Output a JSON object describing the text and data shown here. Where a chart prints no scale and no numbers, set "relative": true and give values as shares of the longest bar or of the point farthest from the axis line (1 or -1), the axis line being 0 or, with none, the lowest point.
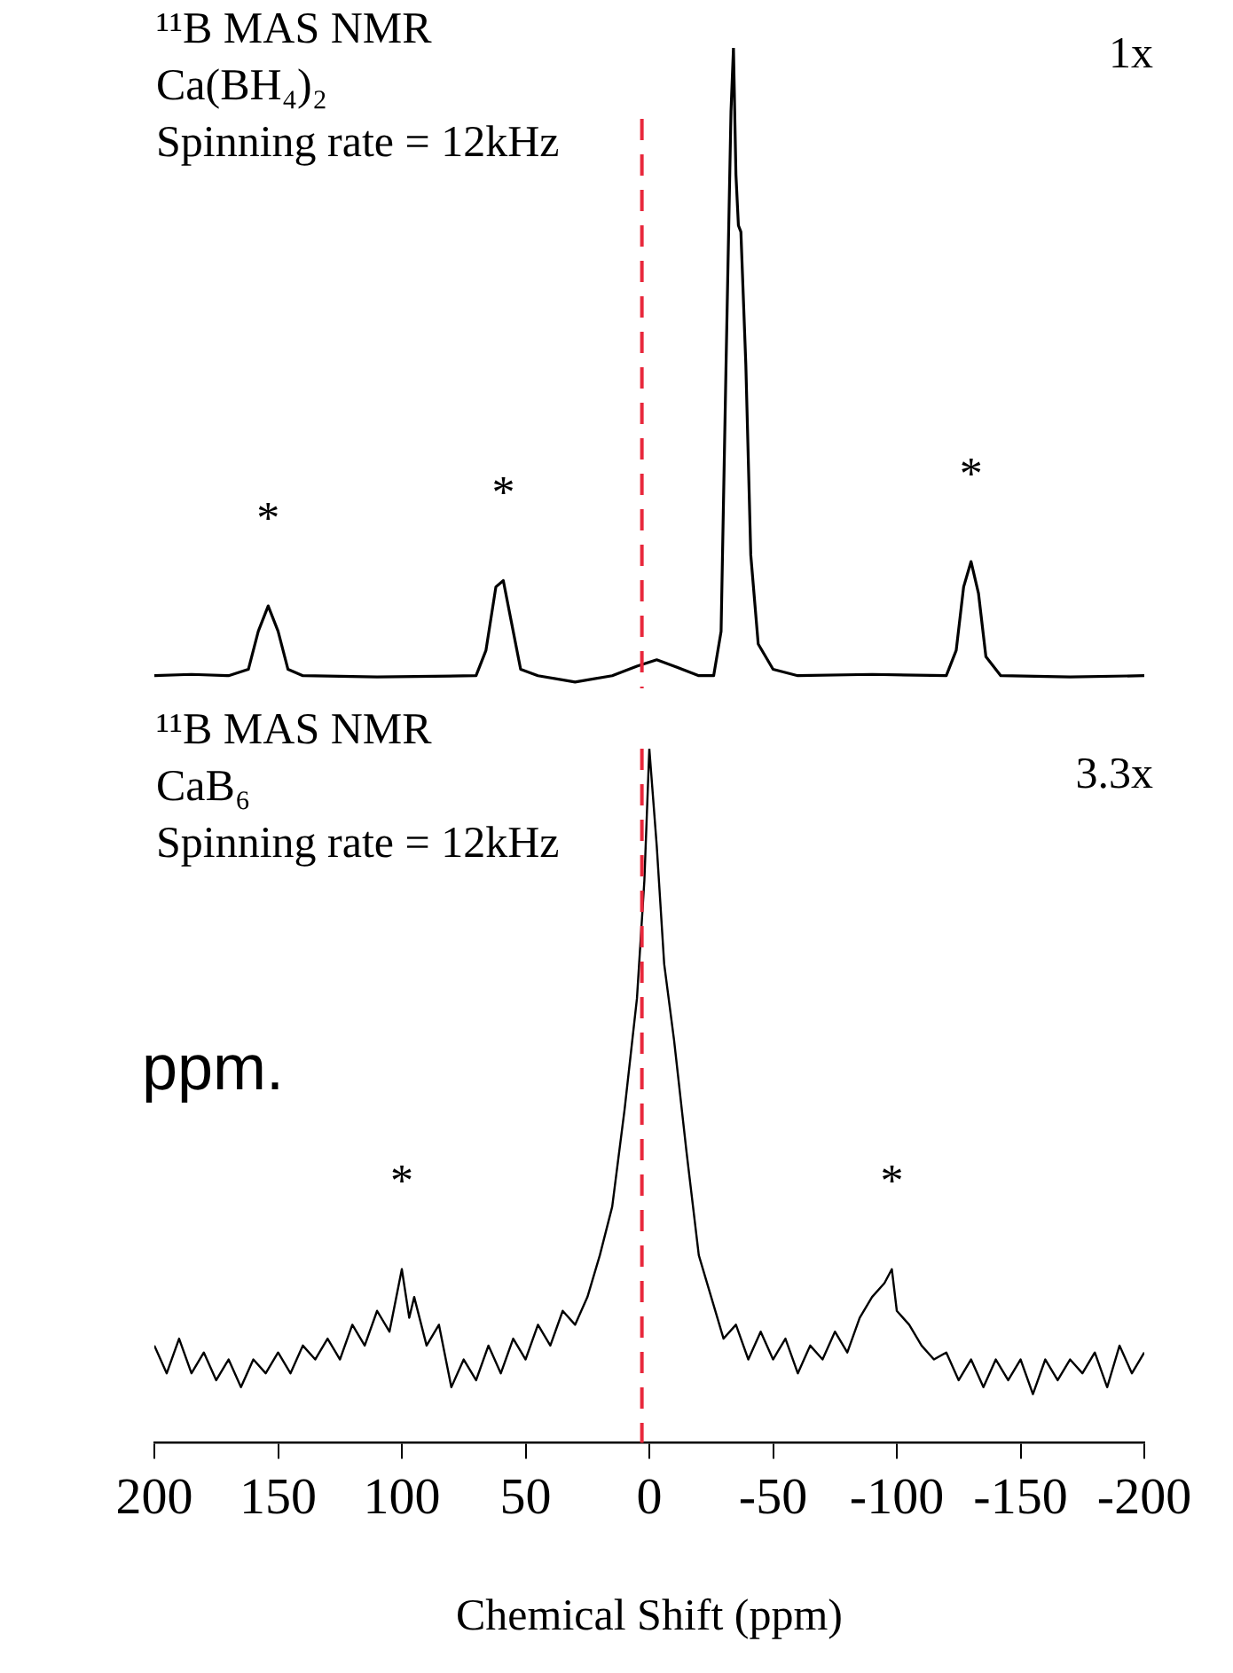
{
  "chart_data": [
    {
      "type": "line",
      "title": "¹¹B MAS NMR",
      "subtitle": "Ca(BH₄)₂",
      "relative": true,
      "xlim": [
        200,
        -200
      ],
      "tick_labels": false,
      "annotations": [
        "Spinning rate = 12kHz",
        "1x",
        {
          "text": "*",
          "x": 154,
          "y": 0.12
        },
        {
          "text": "*",
          "x": 59,
          "y": 0.16
        },
        {
          "text": "*",
          "x": -130,
          "y": 0.19
        }
      ],
      "ref_lines": [
        {
          "axis": "x",
          "value": 3,
          "color": "#e8283c",
          "line_style": "dashed"
        }
      ],
      "series": [
        {
          "color": "#000000",
          "x": [
            200,
            185,
            170,
            162,
            158,
            154,
            150,
            146,
            140,
            110,
            70,
            66,
            62,
            59,
            56,
            52,
            45,
            30,
            15,
            5,
            -3,
            -10,
            -20,
            -26,
            -29,
            -31,
            -33,
            -34,
            -35,
            -36,
            -37,
            -39,
            -41,
            -44,
            -50,
            -60,
            -90,
            -120,
            -124,
            -127,
            -130,
            -133,
            -136,
            -142,
            -170,
            -200
          ],
          "values": [
            0.01,
            0.012,
            0.01,
            0.02,
            0.08,
            0.12,
            0.08,
            0.02,
            0.01,
            0.008,
            0.01,
            0.05,
            0.15,
            0.16,
            0.1,
            0.02,
            0.01,
            0.0,
            0.01,
            0.025,
            0.035,
            0.025,
            0.01,
            0.01,
            0.08,
            0.5,
            0.9,
            1,
            0.8,
            0.72,
            0.71,
            0.5,
            0.2,
            0.06,
            0.02,
            0.01,
            0.012,
            0.01,
            0.05,
            0.15,
            0.19,
            0.14,
            0.04,
            0.01,
            0.008,
            0.01
          ]
        }
      ]
    },
    {
      "type": "line",
      "title": "¹¹B MAS NMR",
      "subtitle": "CaB₆",
      "relative": true,
      "xlim": [
        200,
        -200
      ],
      "xticks": [
        200,
        150,
        100,
        50,
        0,
        -50,
        -100,
        -150,
        -200
      ],
      "xlabel": "Chemical Shift (ppm)",
      "tick_labels": "x",
      "annotations": [
        "Spinning rate = 12kHz",
        "3.3x",
        "ppm.",
        {
          "text": "*",
          "x": 100,
          "y": 0.25
        },
        {
          "text": "*",
          "x": -98,
          "y": 0.25
        }
      ],
      "ref_lines": [
        {
          "axis": "x",
          "value": 3,
          "color": "#e8283c",
          "line_style": "dashed"
        }
      ],
      "series": [
        {
          "color": "#000000",
          "x": [
            200,
            195,
            190,
            185,
            180,
            175,
            170,
            165,
            160,
            155,
            150,
            145,
            140,
            135,
            130,
            125,
            120,
            115,
            110,
            105,
            100,
            97,
            95,
            90,
            85,
            80,
            75,
            70,
            65,
            60,
            55,
            50,
            45,
            40,
            35,
            30,
            25,
            20,
            15,
            10,
            5,
            2,
            0,
            -3,
            -6,
            -10,
            -15,
            -20,
            -25,
            -30,
            -35,
            -40,
            -45,
            -50,
            -55,
            -60,
            -65,
            -70,
            -75,
            -80,
            -85,
            -90,
            -95,
            -98,
            -100,
            -105,
            -110,
            -115,
            -120,
            -125,
            -130,
            -135,
            -140,
            -145,
            -150,
            -155,
            -160,
            -165,
            -170,
            -175,
            -180,
            -185,
            -190,
            -195,
            -200
          ],
          "values": [
            0.14,
            0.1,
            0.15,
            0.1,
            0.13,
            0.09,
            0.12,
            0.08,
            0.12,
            0.1,
            0.13,
            0.1,
            0.14,
            0.12,
            0.15,
            0.12,
            0.17,
            0.14,
            0.19,
            0.16,
            0.25,
            0.18,
            0.21,
            0.14,
            0.17,
            0.08,
            0.12,
            0.09,
            0.14,
            0.1,
            0.15,
            0.12,
            0.17,
            0.14,
            0.19,
            0.17,
            0.21,
            0.27,
            0.34,
            0.48,
            0.64,
            0.81,
            1,
            0.86,
            0.69,
            0.58,
            0.42,
            0.27,
            0.21,
            0.15,
            0.17,
            0.12,
            0.16,
            0.12,
            0.15,
            0.1,
            0.14,
            0.12,
            0.16,
            0.13,
            0.18,
            0.21,
            0.23,
            0.25,
            0.19,
            0.17,
            0.14,
            0.12,
            0.13,
            0.09,
            0.12,
            0.08,
            0.12,
            0.09,
            0.12,
            0.07,
            0.12,
            0.09,
            0.12,
            0.1,
            0.13,
            0.08,
            0.14,
            0.1,
            0.13
          ]
        }
      ]
    }
  ]
}
